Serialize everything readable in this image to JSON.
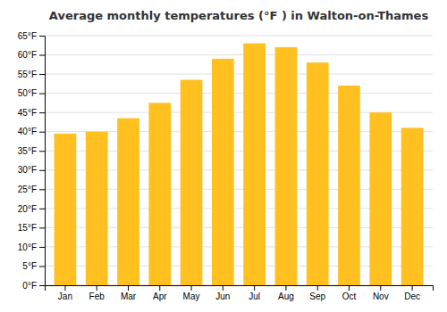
{
  "chart_data": {
    "type": "bar",
    "title": "Average monthly temperatures (°F ) in Walton-on-Thames",
    "categories": [
      "Jan",
      "Feb",
      "Mar",
      "Apr",
      "May",
      "Jun",
      "Jul",
      "Aug",
      "Sep",
      "Oct",
      "Nov",
      "Dec"
    ],
    "values": [
      39.5,
      40.0,
      43.5,
      47.5,
      53.5,
      59.0,
      63.0,
      62.0,
      58.0,
      52.0,
      45.0,
      41.0
    ],
    "color": "#FFC020",
    "ylim": [
      0,
      65
    ],
    "yticks": [
      {
        "value": 0,
        "label": "0°F"
      },
      {
        "value": 5,
        "label": "5°F"
      },
      {
        "value": 10,
        "label": "10°F"
      },
      {
        "value": 15,
        "label": "15°F"
      },
      {
        "value": 20,
        "label": "20°F"
      },
      {
        "value": 25,
        "label": "25°F"
      },
      {
        "value": 30,
        "label": "30°F"
      },
      {
        "value": 35,
        "label": "35°F"
      },
      {
        "value": 40,
        "label": "40°F"
      },
      {
        "value": 45,
        "label": "45°F"
      },
      {
        "value": 50,
        "label": "50°F"
      },
      {
        "value": 55,
        "label": "55°F"
      },
      {
        "value": 60,
        "label": "60°F"
      },
      {
        "value": 65,
        "label": "65°F"
      }
    ],
    "grid": true
  }
}
